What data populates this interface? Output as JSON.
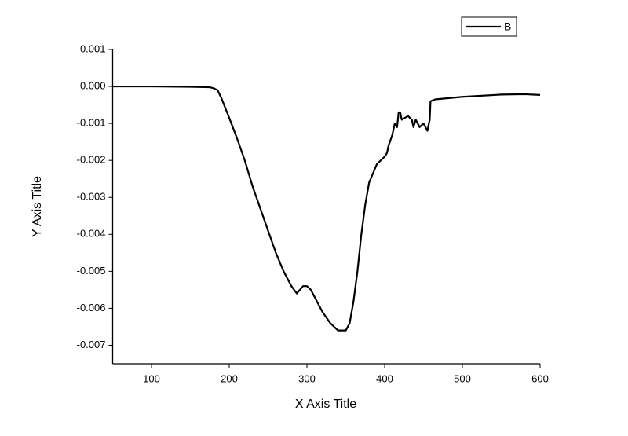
{
  "chart_data": {
    "type": "line",
    "x_label": "X Axis Title",
    "y_label": "Y Axis Title",
    "x": [
      50,
      100,
      150,
      175,
      180,
      185,
      190,
      200,
      210,
      220,
      230,
      240,
      250,
      260,
      270,
      280,
      287,
      295,
      300,
      305,
      310,
      320,
      330,
      340,
      350,
      355,
      360,
      365,
      370,
      375,
      380,
      390,
      400,
      403,
      405,
      410,
      413,
      416,
      418,
      420,
      422,
      430,
      435,
      437,
      440,
      445,
      450,
      455,
      458,
      459,
      465,
      500,
      550,
      580,
      600
    ],
    "series": [
      {
        "name": "B",
        "color": "#000000",
        "values": [
          0,
          0,
          -1e-05,
          -2e-05,
          -5e-05,
          -0.0001,
          -0.00032,
          -0.00085,
          -0.0014,
          -0.002,
          -0.0027,
          -0.0033,
          -0.0039,
          -0.0045,
          -0.005,
          -0.0054,
          -0.0056,
          -0.0054,
          -0.0054,
          -0.0055,
          -0.0057,
          -0.0061,
          -0.0064,
          -0.0066,
          -0.0066,
          -0.0064,
          -0.0058,
          -0.005,
          -0.004,
          -0.0032,
          -0.0026,
          -0.0021,
          -0.0019,
          -0.0018,
          -0.0016,
          -0.0013,
          -0.001,
          -0.0011,
          -0.0007,
          -0.0007,
          -0.0009,
          -0.0008,
          -0.0009,
          -0.0011,
          -0.0009,
          -0.0011,
          -0.001,
          -0.0012,
          -0.0009,
          -0.0004,
          -0.00035,
          -0.00028,
          -0.00022,
          -0.00021,
          -0.00023
        ]
      }
    ],
    "xlim": [
      50,
      600
    ],
    "xticks": [
      100,
      200,
      300,
      400,
      500,
      600
    ],
    "ylim": [
      -0.0075,
      0.001
    ],
    "yticks": [
      0.001,
      {
        "value": 0,
        "label": "0.000"
      },
      -0.001,
      -0.002,
      -0.003,
      -0.004,
      -0.005,
      -0.006,
      -0.007
    ],
    "grid": false,
    "legend": "upper right"
  }
}
